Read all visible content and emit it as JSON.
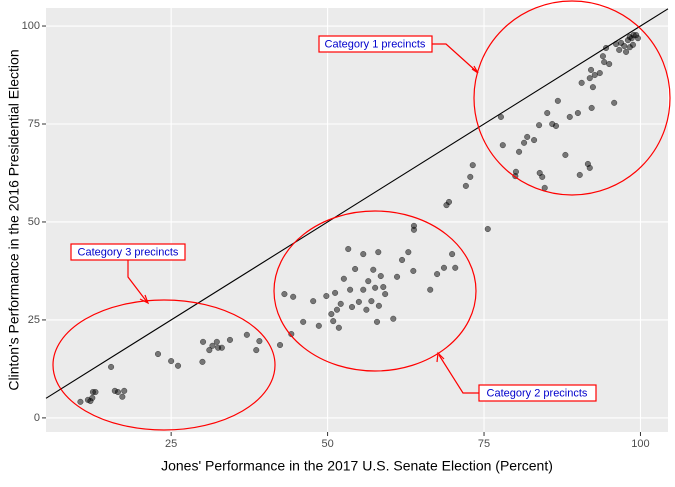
{
  "chart_data": {
    "type": "scatter",
    "xlabel": "Jones' Performance in the 2017 U.S. Senate Election (Percent)",
    "ylabel": "Clinton's Performance in the 2016 Presidential Election",
    "xlim": [
      5,
      104.4
    ],
    "ylim": [
      -3.6,
      104.6
    ],
    "xticks": [
      25,
      50,
      75,
      100
    ],
    "yticks": [
      0,
      25,
      50,
      75,
      100
    ],
    "grid": true,
    "color": "#000000",
    "reference_line": {
      "slope": 1,
      "intercept": 0,
      "color": "#000000"
    },
    "x": [
      10.5,
      11.7,
      12.4,
      12.5,
      12.9,
      12.1,
      15.4,
      16,
      16.5,
      17.2,
      17.5,
      22.9,
      25,
      26.1,
      30,
      30.1,
      31.1,
      31.6,
      32.3,
      32.5,
      33.1,
      34.4,
      37.1,
      38.6,
      39.1,
      42.4,
      43.1,
      44.2,
      44.5,
      46.1,
      47.7,
      48.6,
      49.8,
      50.6,
      50.9,
      51.2,
      51.5,
      51.8,
      52.1,
      52.6,
      53.3,
      53.6,
      53.9,
      54.4,
      55,
      55.7,
      55.7,
      56.2,
      56.5,
      57,
      57.3,
      57.6,
      57.9,
      58.1,
      58.2,
      58.5,
      58.9,
      59.2,
      60.5,
      61.1,
      61.9,
      62.9,
      63.7,
      63.8,
      63.8,
      66.4,
      67.5,
      68.6,
      69.9,
      70.4,
      69,
      69.4,
      72.1,
      72.8,
      73.2,
      75.6,
      77.7,
      78,
      80,
      80.1,
      80.6,
      81.4,
      81.9,
      83,
      83.8,
      83.9,
      84.3,
      84.7,
      85.1,
      85.9,
      86.5,
      86.8,
      88,
      88.7,
      90,
      90.3,
      90.6,
      91.6,
      91.9,
      91.9,
      92.1,
      92.4,
      92.7,
      92.2,
      93.5,
      94,
      94.2,
      94.5,
      95,
      95.8,
      96.1,
      96.6,
      96.9,
      97.4,
      97.7,
      98,
      98.3,
      98.6,
      98.9,
      99.3,
      99.6,
      98.3,
      98.8
    ],
    "values": [
      4.1,
      4.6,
      5.1,
      6.6,
      6.6,
      4.3,
      13,
      6.9,
      6.6,
      5.4,
      6.9,
      16.3,
      14.5,
      13.3,
      14.3,
      19.4,
      17.3,
      18.4,
      19.4,
      17.9,
      17.9,
      19.9,
      21.2,
      17.3,
      19.6,
      18.6,
      31.6,
      21.4,
      30.9,
      24.5,
      29.8,
      23.5,
      31.1,
      26.5,
      24.7,
      31.9,
      27.6,
      23,
      29.1,
      35.5,
      43.1,
      32.7,
      28.3,
      38,
      29.6,
      41.8,
      32.7,
      27.6,
      34.9,
      29.8,
      37.8,
      33.2,
      24.5,
      42.3,
      28.6,
      36.2,
      33.4,
      31.6,
      25.3,
      36,
      40.3,
      42.3,
      37.5,
      48,
      49,
      32.7,
      36.7,
      38.3,
      41.8,
      38.3,
      54.3,
      55.1,
      59.2,
      61.5,
      64.5,
      48.2,
      76.8,
      69.6,
      61.7,
      62.8,
      67.9,
      70.2,
      71.7,
      70.9,
      74.7,
      62.5,
      61.5,
      58.7,
      77.8,
      75,
      74.5,
      80.9,
      67.1,
      76.8,
      77.8,
      62,
      85.5,
      64.8,
      63.8,
      86.7,
      88.8,
      84.4,
      87.5,
      79.1,
      88,
      92.3,
      90.8,
      94.4,
      90.3,
      80.4,
      95.4,
      93.9,
      95.7,
      94.9,
      93.4,
      96.4,
      97.2,
      96.9,
      97.7,
      97.7,
      96.9,
      94.6,
      95.2
    ],
    "annotations": [
      "Category 1 precincts",
      "Category 2 precincts",
      "Category 3 precincts"
    ]
  }
}
